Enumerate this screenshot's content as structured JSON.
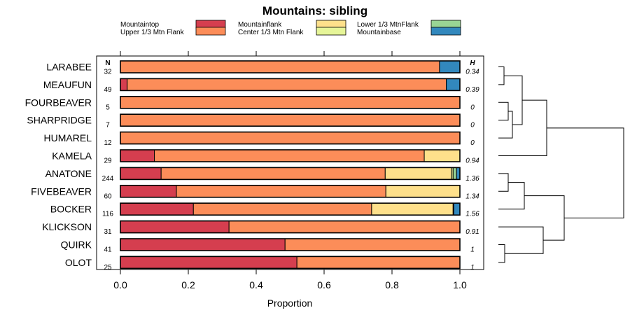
{
  "chart_data": {
    "type": "bar",
    "orientation": "horizontal",
    "stacked": true,
    "title": "Mountains: sibling",
    "xlabel": "Proportion",
    "ylabel": "",
    "xlim": [
      0,
      1
    ],
    "xticks": [
      "0.0",
      "0.2",
      "0.4",
      "0.6",
      "0.8",
      "1.0"
    ],
    "n_header": "N",
    "h_header": "H",
    "legend_placement": "top",
    "series": [
      {
        "name": "Mountaintop",
        "color": "#d53e4f"
      },
      {
        "name": "Upper 1/3 Mtn Flank",
        "color": "#fc8d59"
      },
      {
        "name": "Mountainflank",
        "color": "#fee08b"
      },
      {
        "name": "Center 1/3 Mtn Flank",
        "color": "#e6f598"
      },
      {
        "name": "Lower 1/3 MtnFlank",
        "color": "#99d594"
      },
      {
        "name": "Mountainbase",
        "color": "#3288bd"
      }
    ],
    "categories": [
      {
        "name": "LARABEE",
        "n": "32",
        "h": "0.34",
        "values": [
          0.0,
          0.94,
          0.0,
          0.0,
          0.0,
          0.06
        ]
      },
      {
        "name": "MEAUFUN",
        "n": "49",
        "h": "0.39",
        "values": [
          0.02,
          0.94,
          0.0,
          0.0,
          0.0,
          0.04
        ]
      },
      {
        "name": "FOURBEAVER",
        "n": "5",
        "h": "0",
        "values": [
          0.0,
          1.0,
          0.0,
          0.0,
          0.0,
          0.0
        ]
      },
      {
        "name": "SHARPRIDGE",
        "n": "7",
        "h": "0",
        "values": [
          0.0,
          1.0,
          0.0,
          0.0,
          0.0,
          0.0
        ]
      },
      {
        "name": "HUMAREL",
        "n": "12",
        "h": "0",
        "values": [
          0.0,
          1.0,
          0.0,
          0.0,
          0.0,
          0.0
        ]
      },
      {
        "name": "KAMELA",
        "n": "29",
        "h": "0.94",
        "values": [
          0.1,
          0.795,
          0.105,
          0.0,
          0.0,
          0.0
        ]
      },
      {
        "name": "ANATONE",
        "n": "244",
        "h": "1.36",
        "values": [
          0.12,
          0.66,
          0.195,
          0.005,
          0.01,
          0.01
        ]
      },
      {
        "name": "FIVEBEAVER",
        "n": "60",
        "h": "1.34",
        "values": [
          0.165,
          0.617,
          0.218,
          0.0,
          0.0,
          0.0
        ]
      },
      {
        "name": "BOCKER",
        "n": "116",
        "h": "1.56",
        "values": [
          0.215,
          0.525,
          0.24,
          0.002,
          0.0,
          0.018
        ]
      },
      {
        "name": "KLICKSON",
        "n": "31",
        "h": "0.91",
        "values": [
          0.32,
          0.68,
          0.0,
          0.0,
          0.0,
          0.0
        ]
      },
      {
        "name": "QUIRK",
        "n": "41",
        "h": "1",
        "values": [
          0.485,
          0.515,
          0.0,
          0.0,
          0.0,
          0.0
        ]
      },
      {
        "name": "OLOT",
        "n": "25",
        "h": "1",
        "values": [
          0.52,
          0.48,
          0.0,
          0.0,
          0.0,
          0.0
        ]
      }
    ]
  }
}
